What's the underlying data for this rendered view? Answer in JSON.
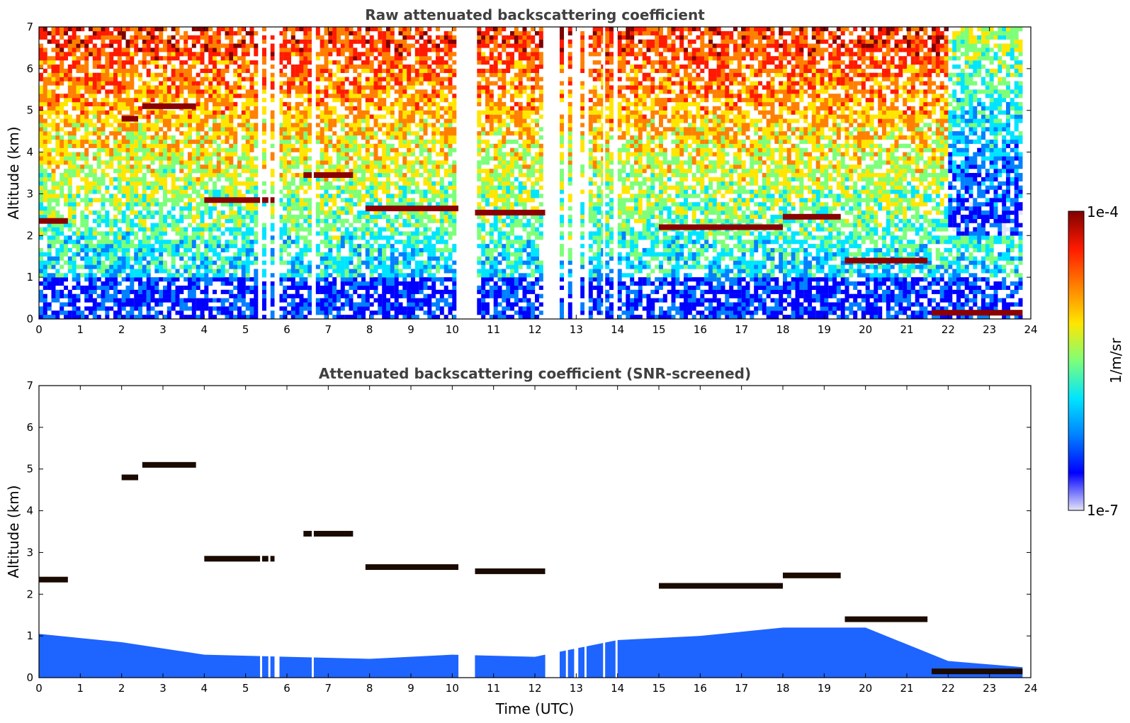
{
  "chart_data": [
    {
      "type": "heatmap",
      "title": "Raw attenuated backscattering coefficient",
      "xlabel": "",
      "ylabel": "Altitude (km)",
      "xlim": [
        0,
        24
      ],
      "ylim": [
        0,
        7
      ],
      "x_ticks": [
        "0",
        "1",
        "2",
        "3",
        "4",
        "5",
        "6",
        "7",
        "8",
        "9",
        "10",
        "11",
        "12",
        "13",
        "14",
        "15",
        "16",
        "17",
        "18",
        "19",
        "20",
        "21",
        "22",
        "23",
        "24"
      ],
      "y_ticks": [
        "0",
        "1",
        "2",
        "3",
        "4",
        "5",
        "6",
        "7"
      ],
      "data_gaps_utc": [
        [
          5.35,
          5.4
        ],
        [
          5.55,
          5.6
        ],
        [
          5.7,
          5.82
        ],
        [
          6.6,
          6.65
        ],
        [
          10.15,
          10.55
        ],
        [
          12.25,
          12.6
        ],
        [
          12.75,
          12.8
        ],
        [
          12.95,
          13.05
        ],
        [
          13.2,
          13.25
        ],
        [
          13.65,
          13.7
        ],
        [
          13.95,
          14.0
        ]
      ],
      "cloud_layers": [
        {
          "x": [
            0.0,
            0.7
          ],
          "altitude_km": 2.35
        },
        {
          "x": [
            2.0,
            2.4
          ],
          "altitude_km": 4.8
        },
        {
          "x": [
            2.5,
            3.8
          ],
          "altitude_km": 5.1
        },
        {
          "x": [
            4.0,
            5.8
          ],
          "altitude_km": 2.85
        },
        {
          "x": [
            6.4,
            7.6
          ],
          "altitude_km": 3.45
        },
        {
          "x": [
            7.9,
            10.15
          ],
          "altitude_km": 2.65
        },
        {
          "x": [
            10.55,
            12.25
          ],
          "altitude_km": 2.55
        },
        {
          "x": [
            15.0,
            18.0
          ],
          "altitude_km": 2.2
        },
        {
          "x": [
            18.0,
            19.4
          ],
          "altitude_km": 2.45
        },
        {
          "x": [
            19.5,
            21.5
          ],
          "altitude_km": 1.4
        },
        {
          "x": [
            21.6,
            23.8
          ],
          "altitude_km": 0.15
        }
      ]
    },
    {
      "type": "heatmap",
      "title": "Attenuated backscattering coefficient (SNR-screened)",
      "xlabel": "Time (UTC)",
      "ylabel": "Altitude (km)",
      "xlim": [
        0,
        24
      ],
      "ylim": [
        0,
        7
      ],
      "x_ticks": [
        "0",
        "1",
        "2",
        "3",
        "4",
        "5",
        "6",
        "7",
        "8",
        "9",
        "10",
        "11",
        "12",
        "13",
        "14",
        "15",
        "16",
        "17",
        "18",
        "19",
        "20",
        "21",
        "22",
        "23",
        "24"
      ],
      "y_ticks": [
        "0",
        "1",
        "2",
        "3",
        "4",
        "5",
        "6",
        "7"
      ],
      "boundary_layer_top_km": [
        [
          0,
          1.05
        ],
        [
          2,
          0.85
        ],
        [
          4,
          0.55
        ],
        [
          6,
          0.5
        ],
        [
          8,
          0.45
        ],
        [
          10,
          0.55
        ],
        [
          12,
          0.5
        ],
        [
          14,
          0.9
        ],
        [
          16,
          1.0
        ],
        [
          18,
          1.2
        ],
        [
          20,
          1.2
        ],
        [
          22,
          0.4
        ],
        [
          23.8,
          0.25
        ]
      ]
    }
  ],
  "colorbar": {
    "label": "1/m/sr",
    "max_label": "1e-4",
    "min_label": "1e-7",
    "colormap": "jet",
    "colors": [
      "#e4e4f8",
      "#0000ff",
      "#0080ff",
      "#00e5ff",
      "#7dff7a",
      "#ffe600",
      "#ff8000",
      "#ff1a00",
      "#7f0000"
    ]
  }
}
